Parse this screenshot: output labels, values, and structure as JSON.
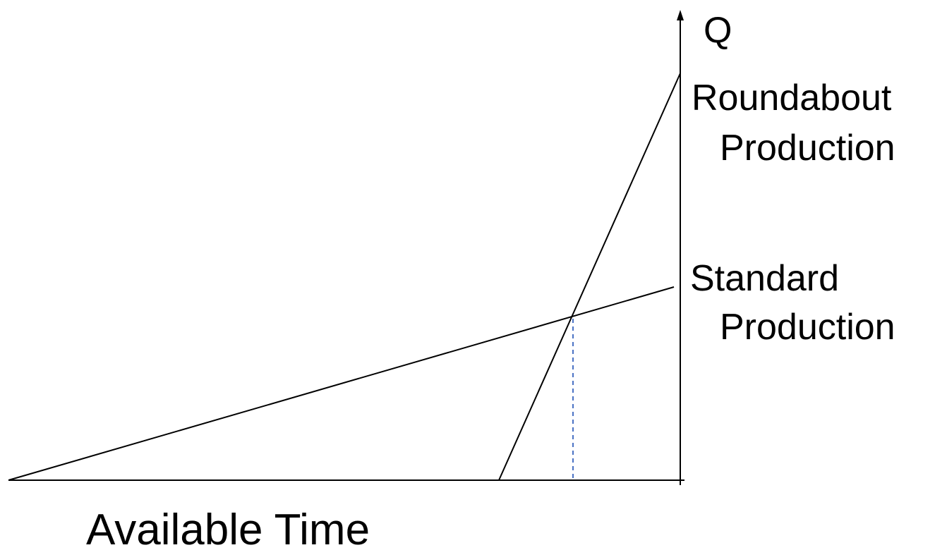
{
  "labels": {
    "y_axis": "Q",
    "x_axis": "Available Time",
    "roundabout_line1": "Roundabout",
    "roundabout_line2": "Production",
    "standard_line1": "Standard",
    "standard_line2": "Production"
  },
  "colors": {
    "background": "#ffffff",
    "lines": "#000000",
    "dashed_marker": "#4a72c4"
  }
}
